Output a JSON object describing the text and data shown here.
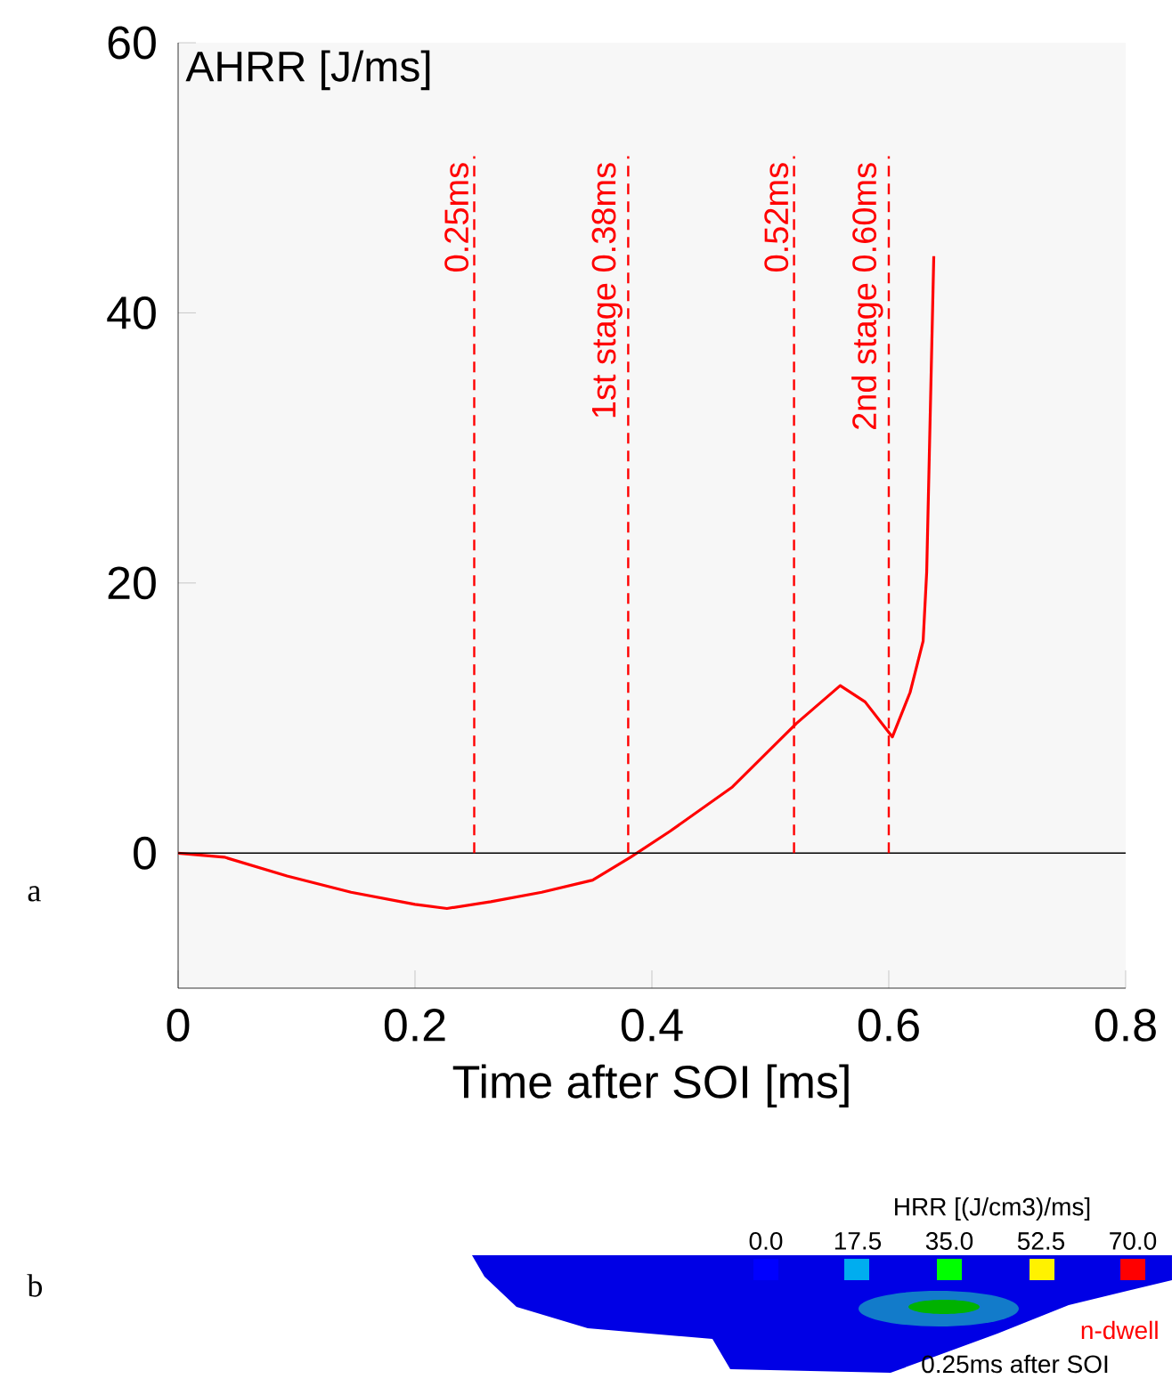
{
  "chart_data": {
    "type": "line",
    "xlabel": "Time after SOI [ms]",
    "ylabel": "AHRR [J/ms]",
    "x": [
      0,
      0.039,
      0.092,
      0.146,
      0.2,
      0.227,
      0.264,
      0.307,
      0.35,
      0.382,
      0.415,
      0.468,
      0.522,
      0.559,
      0.58,
      0.603,
      0.618,
      0.629,
      0.632,
      0.638
    ],
    "series": [
      {
        "color": "#ff0000",
        "values": [
          0,
          -0.3,
          -1.7,
          -2.9,
          -3.8,
          -4.1,
          -3.6,
          -2.9,
          -2.0,
          -0.3,
          1.6,
          4.9,
          9.6,
          12.4,
          11.2,
          8.6,
          11.9,
          15.7,
          20.8,
          44.2
        ]
      }
    ],
    "xlim": [
      0,
      0.8
    ],
    "ylim": [
      -10,
      60
    ],
    "xticks": [
      0,
      0.2,
      0.4,
      0.6,
      0.8
    ],
    "yticks": [
      0,
      20,
      40,
      60
    ],
    "ref_lines": [
      {
        "axis": "y",
        "value": 0,
        "color": "#000000",
        "line_style": "solid"
      },
      {
        "axis": "x",
        "value": 0.25,
        "label": "0.25ms",
        "color": "#ff0000",
        "line_style": "dashed"
      },
      {
        "axis": "x",
        "value": 0.38,
        "label": "1st stage 0.38ms",
        "color": "#ff0000",
        "line_style": "dashed"
      },
      {
        "axis": "x",
        "value": 0.52,
        "label": "0.52ms",
        "color": "#ff0000",
        "line_style": "dashed"
      },
      {
        "axis": "x",
        "value": 0.6,
        "label": "2nd stage 0.60ms",
        "color": "#ff0000",
        "line_style": "dashed"
      }
    ],
    "annotations": [
      "a",
      "b",
      "HRR [(J/cm3)/ms]",
      "0.0",
      "17.5",
      "35.0",
      "52.5",
      "70.0",
      "n-dwell",
      "0.25ms after SOI"
    ],
    "grid": false,
    "marker": "none",
    "line_style": "solid"
  }
}
